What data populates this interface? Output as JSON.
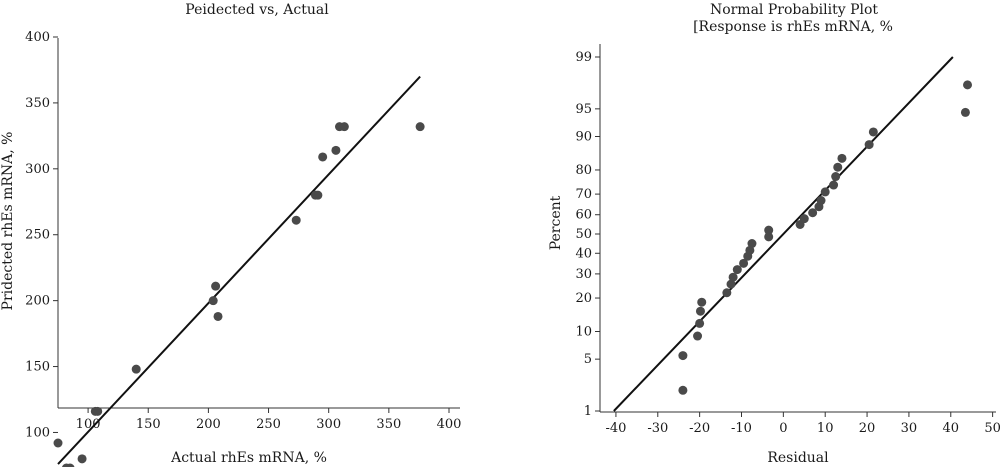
{
  "chart_data": [
    {
      "type": "scatter",
      "title": "Peidected vs, Actual",
      "subtitle": "",
      "xlabel": "Actual rhEs mRNA, %",
      "ylabel": "Pridected rhEs mRNA, %",
      "xlim": [
        70,
        400
      ],
      "ylim": [
        70,
        400
      ],
      "xticks": [
        100,
        150,
        200,
        250,
        300,
        350,
        400
      ],
      "yticks": [
        100,
        150,
        200,
        250,
        300,
        350,
        400
      ],
      "grid": false,
      "points": [
        {
          "x": 75,
          "y": 92
        },
        {
          "x": 82,
          "y": 73
        },
        {
          "x": 85,
          "y": 73
        },
        {
          "x": 95,
          "y": 80
        },
        {
          "x": 106,
          "y": 116
        },
        {
          "x": 108,
          "y": 116
        },
        {
          "x": 140,
          "y": 148
        },
        {
          "x": 204,
          "y": 200
        },
        {
          "x": 206,
          "y": 211
        },
        {
          "x": 208,
          "y": 188
        },
        {
          "x": 273,
          "y": 261
        },
        {
          "x": 289,
          "y": 280
        },
        {
          "x": 291,
          "y": 280
        },
        {
          "x": 295,
          "y": 309
        },
        {
          "x": 306,
          "y": 314
        },
        {
          "x": 309,
          "y": 332
        },
        {
          "x": 313,
          "y": 332
        },
        {
          "x": 376,
          "y": 332
        }
      ],
      "fit_line": [
        {
          "x": 75,
          "y": 76
        },
        {
          "x": 376,
          "y": 370
        }
      ]
    },
    {
      "type": "scatter",
      "title": "Normal Probability Plot",
      "subtitle": "[Response is rhEs mRNA, %",
      "xlabel": "Residual",
      "ylabel": "Percent",
      "xlim": [
        -45,
        52
      ],
      "ylim": [
        1,
        99
      ],
      "y_scale": "normal-probability",
      "xticks": [
        -40,
        -30,
        -20,
        -10,
        0,
        10,
        20,
        30,
        40,
        50
      ],
      "yticks": [
        1,
        5,
        10,
        20,
        30,
        40,
        50,
        60,
        70,
        80,
        90,
        95,
        99
      ],
      "grid": false,
      "points": [
        {
          "x": -24,
          "y": 2
        },
        {
          "x": -24,
          "y": 5.5
        },
        {
          "x": -20.5,
          "y": 9
        },
        {
          "x": -20,
          "y": 12
        },
        {
          "x": -19.8,
          "y": 15.5
        },
        {
          "x": -19.5,
          "y": 18.5
        },
        {
          "x": -13.5,
          "y": 22
        },
        {
          "x": -12.5,
          "y": 25.5
        },
        {
          "x": -12,
          "y": 28.5
        },
        {
          "x": -11,
          "y": 32
        },
        {
          "x": -9.5,
          "y": 35
        },
        {
          "x": -8.5,
          "y": 38.5
        },
        {
          "x": -8,
          "y": 41.5
        },
        {
          "x": -7.5,
          "y": 45
        },
        {
          "x": -3.5,
          "y": 48.5
        },
        {
          "x": -3.5,
          "y": 52
        },
        {
          "x": 4,
          "y": 55
        },
        {
          "x": 5,
          "y": 58
        },
        {
          "x": 7,
          "y": 61
        },
        {
          "x": 8.5,
          "y": 64
        },
        {
          "x": 9,
          "y": 67
        },
        {
          "x": 10,
          "y": 71
        },
        {
          "x": 12,
          "y": 74
        },
        {
          "x": 12.5,
          "y": 77.5
        },
        {
          "x": 13,
          "y": 81
        },
        {
          "x": 14,
          "y": 84
        },
        {
          "x": 20.5,
          "y": 88
        },
        {
          "x": 21.5,
          "y": 91
        },
        {
          "x": 43.5,
          "y": 94.5
        },
        {
          "x": 44,
          "y": 97.5
        }
      ],
      "fit_line": [
        {
          "x": -40.5,
          "y": 1
        },
        {
          "x": 40.5,
          "y": 99
        }
      ]
    }
  ]
}
